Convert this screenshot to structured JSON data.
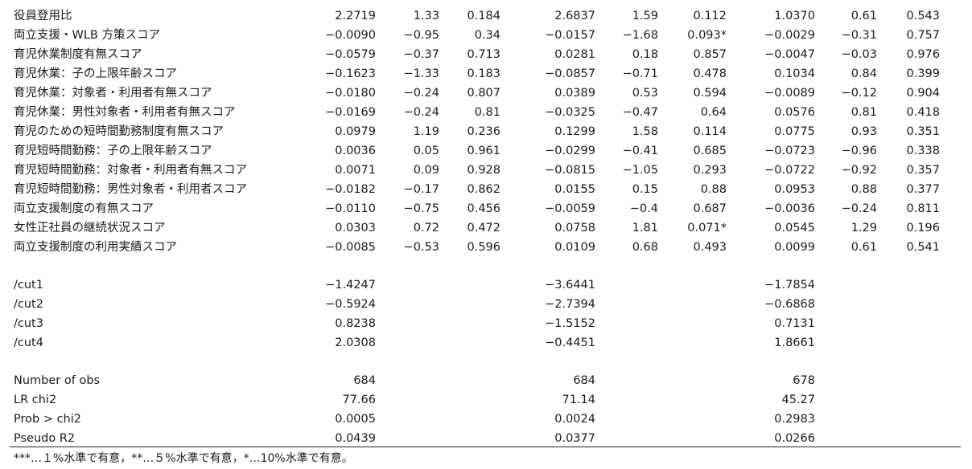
{
  "rows": [
    {
      "label": "役員登用比",
      "v": [
        "2.2719",
        "1.33",
        "0.184",
        "2.6837",
        "1.59",
        "0.112",
        "1.0370",
        "0.61",
        "0.543"
      ]
    },
    {
      "label": "両立支援・WLB 方策スコア",
      "v": [
        "−0.0090",
        "−0.95",
        "0.34",
        "−0.0157",
        "−1.68",
        "0.093*",
        "−0.0029",
        "−0.31",
        "0.757"
      ]
    },
    {
      "label": "育児休業制度有無スコア",
      "v": [
        "−0.0579",
        "−0.37",
        "0.713",
        "0.0281",
        "0.18",
        "0.857",
        "−0.0047",
        "−0.03",
        "0.976"
      ]
    },
    {
      "label": "育児休業：子の上限年齢スコア",
      "v": [
        "−0.1623",
        "−1.33",
        "0.183",
        "−0.0857",
        "−0.71",
        "0.478",
        "0.1034",
        "0.84",
        "0.399"
      ]
    },
    {
      "label": "育児休業：対象者・利用者有無スコア",
      "v": [
        "−0.0180",
        "−0.24",
        "0.807",
        "0.0389",
        "0.53",
        "0.594",
        "−0.0089",
        "−0.12",
        "0.904"
      ]
    },
    {
      "label": "育児休業：男性対象者・利用者有無スコア",
      "v": [
        "−0.0169",
        "−0.24",
        "0.81",
        "−0.0325",
        "−0.47",
        "0.64",
        "0.0576",
        "0.81",
        "0.418"
      ]
    },
    {
      "label": "育児のための短時間勤務制度有無スコア",
      "v": [
        "0.0979",
        "1.19",
        "0.236",
        "0.1299",
        "1.58",
        "0.114",
        "0.0775",
        "0.93",
        "0.351"
      ]
    },
    {
      "label": "育児短時間勤務：子の上限年齢スコア",
      "v": [
        "0.0036",
        "0.05",
        "0.961",
        "−0.0299",
        "−0.41",
        "0.685",
        "−0.0723",
        "−0.96",
        "0.338"
      ]
    },
    {
      "label": "育児短時間勤務：対象者・利用者有無スコア",
      "v": [
        "0.0071",
        "0.09",
        "0.928",
        "−0.0815",
        "−1.05",
        "0.293",
        "−0.0722",
        "−0.92",
        "0.357"
      ]
    },
    {
      "label": "育児短時間勤務：男性対象者・利用者スコア",
      "v": [
        "−0.0182",
        "−0.17",
        "0.862",
        "0.0155",
        "0.15",
        "0.88",
        "0.0953",
        "0.88",
        "0.377"
      ]
    },
    {
      "label": "両立支援制度の有無スコア",
      "v": [
        "−0.0110",
        "−0.75",
        "0.456",
        "−0.0059",
        "−0.4",
        "0.687",
        "−0.0036",
        "−0.24",
        "0.811"
      ]
    },
    {
      "label": "女性正社員の継続状況スコア",
      "v": [
        "0.0303",
        "0.72",
        "0.472",
        "0.0758",
        "1.81",
        "0.071*",
        "0.0545",
        "1.29",
        "0.196"
      ]
    },
    {
      "label": "両立支援制度の利用実績スコア",
      "v": [
        "−0.0085",
        "−0.53",
        "0.596",
        "0.0109",
        "0.68",
        "0.493",
        "0.0099",
        "0.61",
        "0.541"
      ]
    }
  ],
  "cuts": [
    {
      "label": "/cut1",
      "v": [
        "−1.4247",
        "−3.6441",
        "−1.7854"
      ]
    },
    {
      "label": "/cut2",
      "v": [
        "−0.5924",
        "−2.7394",
        "−0.6868"
      ]
    },
    {
      "label": "/cut3",
      "v": [
        "0.8238",
        "−1.5152",
        "0.7131"
      ]
    },
    {
      "label": "/cut4",
      "v": [
        "2.0308",
        "−0.4451",
        "1.8661"
      ]
    }
  ],
  "stats": [
    {
      "label": "Number of obs",
      "v": [
        "684",
        "684",
        "678"
      ]
    },
    {
      "label": "LR chi2",
      "v": [
        "77.66",
        "71.14",
        "45.27"
      ]
    },
    {
      "label": "Prob > chi2",
      "v": [
        "0.0005",
        "0.0024",
        "0.2983"
      ]
    },
    {
      "label": "Pseudo R2",
      "v": [
        "0.0439",
        "0.0377",
        "0.0266"
      ]
    }
  ],
  "note": "***…１%水準で有意，**…５%水準で有意，*…10%水準で有意。"
}
